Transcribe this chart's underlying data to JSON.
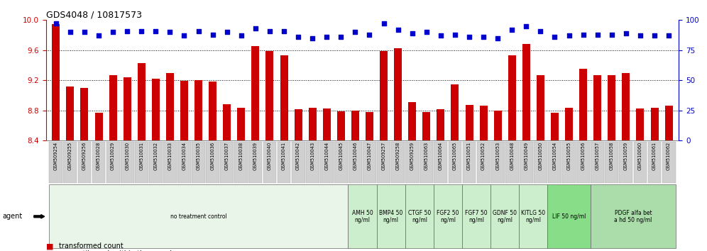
{
  "title": "GDS4048 / 10817573",
  "samples": [
    "GSM509254",
    "GSM509255",
    "GSM509256",
    "GSM510028",
    "GSM510029",
    "GSM510030",
    "GSM510031",
    "GSM510032",
    "GSM510033",
    "GSM510034",
    "GSM510035",
    "GSM510036",
    "GSM510037",
    "GSM510038",
    "GSM510039",
    "GSM510040",
    "GSM510041",
    "GSM510042",
    "GSM510043",
    "GSM510044",
    "GSM510045",
    "GSM510046",
    "GSM510047",
    "GSM509257",
    "GSM509258",
    "GSM509259",
    "GSM510063",
    "GSM510064",
    "GSM510065",
    "GSM510051",
    "GSM510052",
    "GSM510053",
    "GSM510048",
    "GSM510049",
    "GSM510050",
    "GSM510054",
    "GSM510055",
    "GSM510056",
    "GSM510057",
    "GSM510058",
    "GSM510059",
    "GSM510060",
    "GSM510061",
    "GSM510062"
  ],
  "bar_values": [
    9.95,
    9.12,
    9.1,
    8.77,
    9.27,
    9.24,
    9.43,
    9.22,
    9.3,
    9.19,
    9.2,
    9.18,
    8.88,
    8.84,
    9.65,
    9.59,
    9.53,
    8.82,
    8.84,
    8.83,
    8.79,
    8.8,
    8.78,
    9.59,
    9.63,
    8.91,
    8.78,
    8.82,
    9.15,
    8.87,
    8.86,
    8.8,
    9.53,
    9.68,
    9.27,
    8.77,
    8.84,
    9.35,
    9.27,
    9.27,
    9.3,
    8.83,
    8.84,
    8.86
  ],
  "percentile_values": [
    97,
    90,
    90,
    87,
    90,
    91,
    91,
    91,
    90,
    87,
    91,
    88,
    90,
    87,
    93,
    91,
    91,
    86,
    85,
    86,
    86,
    90,
    88,
    97,
    92,
    89,
    90,
    87,
    88,
    86,
    86,
    85,
    92,
    95,
    91,
    86,
    87,
    88,
    88,
    88,
    89,
    87,
    87,
    87
  ],
  "agents": [
    {
      "label": "no treatment control",
      "start": 0,
      "end": 21,
      "color": "#e8f5e8",
      "lines": 1
    },
    {
      "label": "AMH 50\nng/ml",
      "start": 21,
      "end": 23,
      "color": "#cceecc",
      "lines": 2
    },
    {
      "label": "BMP4 50\nng/ml",
      "start": 23,
      "end": 25,
      "color": "#cceecc",
      "lines": 2
    },
    {
      "label": "CTGF 50\nng/ml",
      "start": 25,
      "end": 27,
      "color": "#cceecc",
      "lines": 2
    },
    {
      "label": "FGF2 50\nng/ml",
      "start": 27,
      "end": 29,
      "color": "#cceecc",
      "lines": 2
    },
    {
      "label": "FGF7 50\nng/ml",
      "start": 29,
      "end": 31,
      "color": "#cceecc",
      "lines": 2
    },
    {
      "label": "GDNF 50\nng/ml",
      "start": 31,
      "end": 33,
      "color": "#cceecc",
      "lines": 2
    },
    {
      "label": "KITLG 50\nng/ml",
      "start": 33,
      "end": 35,
      "color": "#cceecc",
      "lines": 2
    },
    {
      "label": "LIF 50 ng/ml",
      "start": 35,
      "end": 38,
      "color": "#88dd88",
      "lines": 1
    },
    {
      "label": "PDGF alfa bet\na hd 50 ng/ml",
      "start": 38,
      "end": 44,
      "color": "#aaddaa",
      "lines": 2
    }
  ],
  "ylim_left": [
    8.4,
    10.0
  ],
  "ylim_right": [
    0,
    100
  ],
  "yticks_left": [
    8.4,
    8.8,
    9.2,
    9.6,
    10.0
  ],
  "yticks_right": [
    0,
    25,
    50,
    75,
    100
  ],
  "bar_color": "#cc0000",
  "dot_color": "#0000cc",
  "bg_plot": "#ffffff",
  "tick_label_bg": "#d0d0d0",
  "grid_color": "#000000"
}
